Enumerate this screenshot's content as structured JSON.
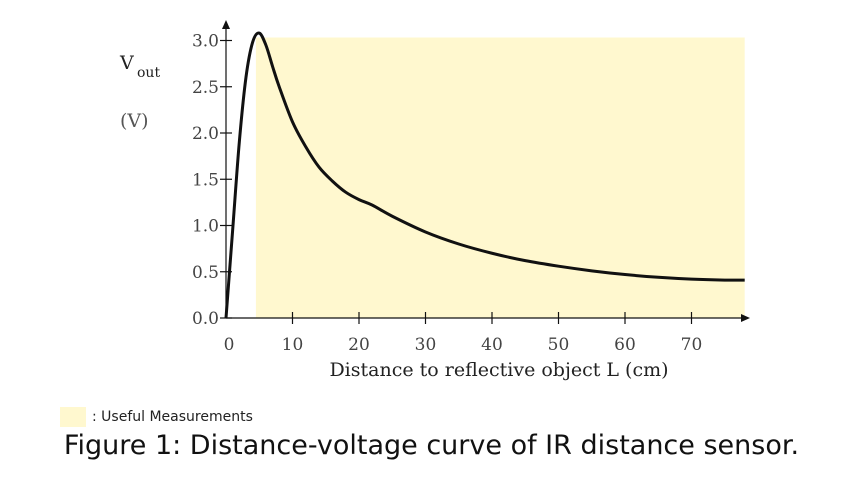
{
  "chart_data": {
    "type": "area",
    "title": "",
    "xlabel": "Distance to reflective object L (cm)",
    "ylabel": "V",
    "ylabel_sub": "out",
    "ylabel_unit": "(V)",
    "xlim": [
      0,
      78
    ],
    "ylim": [
      0,
      3.0
    ],
    "x_ticks": [
      0,
      10,
      20,
      30,
      40,
      50,
      60,
      70
    ],
    "y_ticks": [
      "0.0",
      "0.5",
      "1.0",
      "1.5",
      "2.0",
      "2.5",
      "3.0"
    ],
    "grid": false,
    "useful_region": {
      "x_start": 4.5,
      "x_end": 78,
      "color": "#fff8cf"
    },
    "series": [
      {
        "x": [
          0,
          1,
          2,
          3,
          4,
          5,
          6,
          7,
          8,
          10,
          12,
          14,
          16,
          18,
          20,
          22,
          25,
          30,
          35,
          40,
          45,
          50,
          55,
          60,
          65,
          70,
          75,
          78
        ],
        "values": [
          0.0,
          0.95,
          1.9,
          2.6,
          2.98,
          3.08,
          2.95,
          2.72,
          2.5,
          2.12,
          1.85,
          1.63,
          1.48,
          1.36,
          1.28,
          1.22,
          1.1,
          0.93,
          0.8,
          0.7,
          0.62,
          0.56,
          0.51,
          0.47,
          0.44,
          0.42,
          0.41,
          0.41
        ]
      }
    ]
  },
  "legend": {
    "label": ": Useful Measurements"
  },
  "caption": "Figure 1: Distance-voltage curve of IR distance sensor."
}
